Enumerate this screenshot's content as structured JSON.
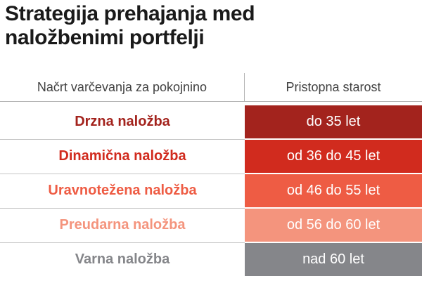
{
  "title": {
    "line1": "Strategija prehajanja med",
    "line2": "naložbenimi portfelji"
  },
  "table": {
    "columns": [
      {
        "label": "Načrt varčevanja za pokojnino"
      },
      {
        "label": "Pristopna starost"
      }
    ],
    "rows": [
      {
        "plan": "Drzna naložba",
        "age": "do 35 let",
        "color": "#a3231d"
      },
      {
        "plan": "Dinamična naložba",
        "age": "od 36 do 45 let",
        "color": "#d12b1e"
      },
      {
        "plan": "Uravnotežena naložba",
        "age": "od 46 do 55 let",
        "color": "#ee5c44"
      },
      {
        "plan": "Preudarna naložba",
        "age": "od 56 do 60 let",
        "color": "#f4947d"
      },
      {
        "plan": "Varna naložba",
        "age": "nad 60 let",
        "color": "#85868a"
      }
    ]
  },
  "colors": {
    "title_text": "#1a1a1a",
    "header_text": "#414141",
    "header_line": "#b5b5b5",
    "row_divider": "#c6c6c6",
    "age_text": "#ffffff",
    "background": "#ffffff"
  },
  "chart_data": {
    "type": "table",
    "title": "Strategija prehajanja med naložbenimi portfelji",
    "columns": [
      "Načrt varčevanja za pokojnino",
      "Pristopna starost"
    ],
    "rows": [
      [
        "Drzna naložba",
        "do 35 let"
      ],
      [
        "Dinamična naložba",
        "od 36 do 45 let"
      ],
      [
        "Uravnotežena naložba",
        "od 46 do 55 let"
      ],
      [
        "Preudarna naložba",
        "od 56 do 60 let"
      ],
      [
        "Varna naložba",
        "nad 60 let"
      ]
    ],
    "row_colors": [
      "#a3231d",
      "#d12b1e",
      "#ee5c44",
      "#f4947d",
      "#85868a"
    ],
    "legend_position": "none",
    "grid": "row-dividers-left-column-only"
  }
}
